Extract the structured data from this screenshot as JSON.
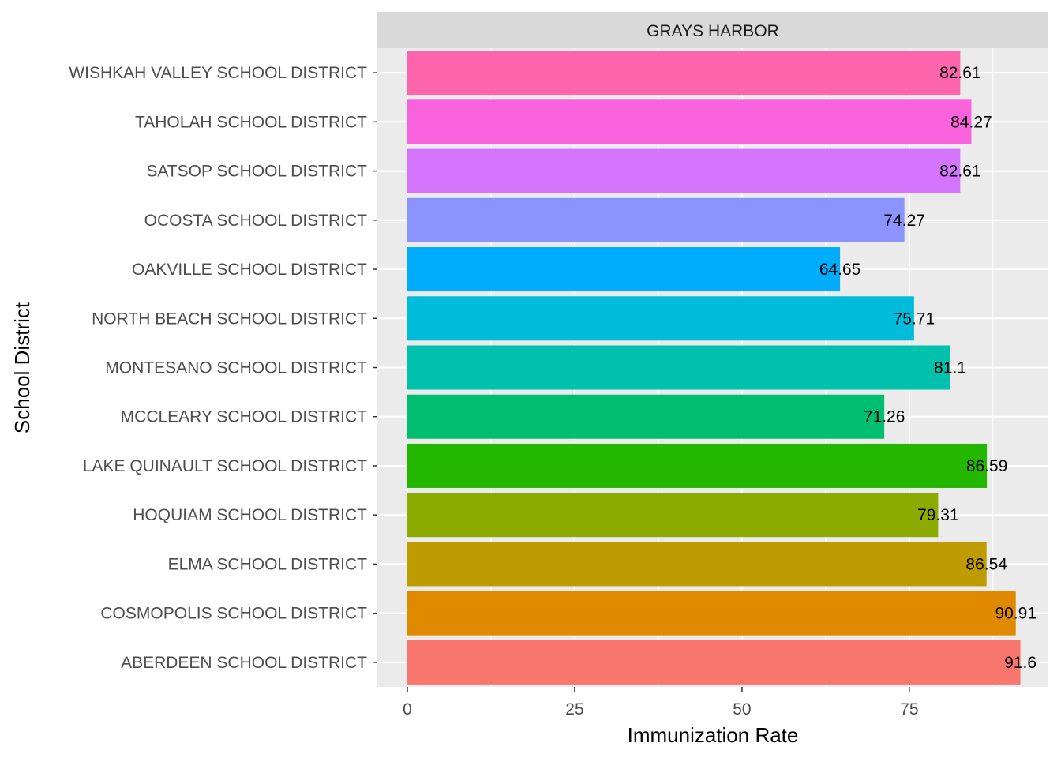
{
  "chart_data": {
    "type": "bar",
    "orientation": "horizontal",
    "facet": "GRAYS HARBOR",
    "xlabel": "Immunization Rate",
    "ylabel": "School District",
    "xlim": [
      0,
      93
    ],
    "x_ticks": [
      0,
      25,
      50,
      75
    ],
    "grid": true,
    "legend": "none",
    "categories": [
      "ABERDEEN SCHOOL DISTRICT",
      "COSMOPOLIS SCHOOL DISTRICT",
      "ELMA SCHOOL DISTRICT",
      "HOQUIAM SCHOOL DISTRICT",
      "LAKE QUINAULT SCHOOL DISTRICT",
      "MCCLEARY SCHOOL DISTRICT",
      "MONTESANO SCHOOL DISTRICT",
      "NORTH BEACH SCHOOL DISTRICT",
      "OAKVILLE SCHOOL DISTRICT",
      "OCOSTA SCHOOL DISTRICT",
      "SATSOP SCHOOL DISTRICT",
      "TAHOLAH SCHOOL DISTRICT",
      "WISHKAH VALLEY SCHOOL DISTRICT"
    ],
    "values": [
      91.6,
      90.91,
      86.54,
      79.31,
      86.59,
      71.26,
      81.1,
      75.71,
      64.65,
      74.27,
      82.61,
      84.27,
      82.61
    ],
    "data_labels": [
      "91.6",
      "90.91",
      "86.54",
      "79.31",
      "86.59",
      "71.26",
      "81.1",
      "75.71",
      "64.65",
      "74.27",
      "82.61",
      "84.27",
      "82.61"
    ],
    "colors": [
      "#F8766D",
      "#E18A00",
      "#BE9C00",
      "#8CAB00",
      "#24B700",
      "#00BE70",
      "#00C1AB",
      "#00BBDA",
      "#00ACFC",
      "#8B93FF",
      "#D575FE",
      "#F962DD",
      "#FF65AC"
    ]
  }
}
